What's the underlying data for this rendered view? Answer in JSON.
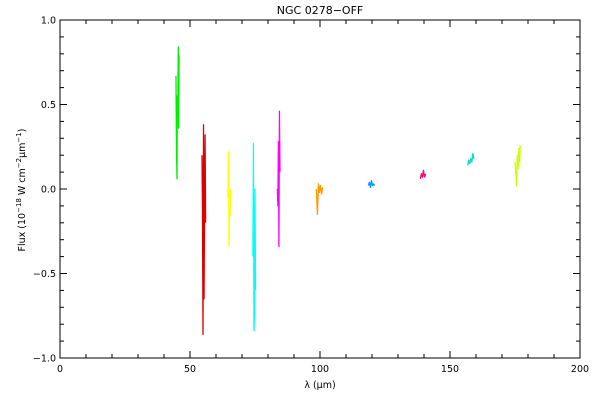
{
  "chart_data": {
    "type": "line",
    "title": "NGC 0278−OFF",
    "xlabel": "λ (μm)",
    "ylabel_parts": {
      "pre": "Flux (10",
      "exp1": "−18",
      "mid": " W cm",
      "exp2": "−2",
      "mid2": "μm",
      "exp3": "−1",
      "post": ")"
    },
    "xlim": [
      0,
      200
    ],
    "ylim": [
      -1.0,
      1.0
    ],
    "x_ticks": [
      {
        "value": 0,
        "label": "0"
      },
      {
        "value": 50,
        "label": "50"
      },
      {
        "value": 100,
        "label": "100"
      },
      {
        "value": 150,
        "label": "150"
      },
      {
        "value": 200,
        "label": "200"
      }
    ],
    "y_ticks": [
      {
        "value": -1.0,
        "label": "−1.0"
      },
      {
        "value": -0.5,
        "label": "−0.5"
      },
      {
        "value": 0.0,
        "label": "0.0"
      },
      {
        "value": 0.5,
        "label": "0.5"
      },
      {
        "value": 1.0,
        "label": "1.0"
      }
    ],
    "x_minor_step": 10,
    "y_minor_step": 0.1,
    "grid": false,
    "legend": "none",
    "series": [
      {
        "color": "#00ee00",
        "points": [
          [
            44.6,
            0.67
          ],
          [
            44.8,
            0.23
          ],
          [
            45.0,
            0.06
          ],
          [
            45.1,
            0.55
          ],
          [
            45.3,
            0.46
          ],
          [
            45.5,
            0.84
          ],
          [
            45.6,
            0.36
          ],
          [
            45.8,
            0.79
          ]
        ]
      },
      {
        "color": "#dd0000",
        "points": [
          [
            54.6,
            0.2
          ],
          [
            54.8,
            -0.1
          ],
          [
            55.0,
            -0.86
          ],
          [
            55.2,
            0.38
          ],
          [
            55.4,
            -0.65
          ],
          [
            55.6,
            -0.12
          ],
          [
            55.8,
            0.32
          ],
          [
            56.0,
            -0.2
          ]
        ]
      },
      {
        "color": "#ffff00",
        "points": [
          [
            64.6,
            -0.05
          ],
          [
            64.8,
            0.22
          ],
          [
            65.0,
            -0.34
          ],
          [
            65.2,
            -0.1
          ],
          [
            65.4,
            -0.16
          ],
          [
            65.6,
            0.0
          ]
        ]
      },
      {
        "color": "#00ffff",
        "points": [
          [
            74.2,
            -0.4
          ],
          [
            74.4,
            0.27
          ],
          [
            74.6,
            -0.84
          ],
          [
            74.8,
            -0.75
          ],
          [
            75.0,
            0.0
          ],
          [
            75.2,
            -0.6
          ]
        ]
      },
      {
        "color": "#ff00ff",
        "points": [
          [
            83.6,
            0.0
          ],
          [
            83.8,
            -0.1
          ],
          [
            84.0,
            0.28
          ],
          [
            84.2,
            -0.34
          ],
          [
            84.4,
            0.46
          ],
          [
            84.6,
            0.1
          ]
        ]
      },
      {
        "color": "#ff9900",
        "points": [
          [
            98.6,
            0.0
          ],
          [
            99.0,
            -0.15
          ],
          [
            99.4,
            0.03
          ],
          [
            99.8,
            -0.02
          ],
          [
            100.2,
            0.02
          ],
          [
            100.6,
            -0.03
          ],
          [
            101.0,
            0.01
          ]
        ]
      },
      {
        "color": "#0099ff",
        "points": [
          [
            118.6,
            0.02
          ],
          [
            119.0,
            0.04
          ],
          [
            119.4,
            0.01
          ],
          [
            119.8,
            0.05
          ],
          [
            120.2,
            0.02
          ],
          [
            120.6,
            0.03
          ],
          [
            121.0,
            0.02
          ]
        ]
      },
      {
        "color": "#ff0066",
        "points": [
          [
            138.6,
            0.06
          ],
          [
            139.0,
            0.09
          ],
          [
            139.4,
            0.07
          ],
          [
            139.8,
            0.11
          ],
          [
            140.2,
            0.07
          ],
          [
            140.6,
            0.09
          ]
        ]
      },
      {
        "color": "#00e0c0",
        "points": [
          [
            156.8,
            0.14
          ],
          [
            157.2,
            0.17
          ],
          [
            157.6,
            0.15
          ],
          [
            158.0,
            0.18
          ],
          [
            158.4,
            0.16
          ],
          [
            158.8,
            0.21
          ],
          [
            159.2,
            0.18
          ]
        ]
      },
      {
        "color": "#ccff00",
        "points": [
          [
            175.0,
            0.16
          ],
          [
            175.3,
            0.1
          ],
          [
            175.6,
            0.02
          ],
          [
            175.9,
            0.2
          ],
          [
            176.2,
            0.12
          ],
          [
            176.5,
            0.24
          ],
          [
            176.8,
            0.16
          ],
          [
            177.0,
            0.26
          ]
        ]
      }
    ]
  }
}
